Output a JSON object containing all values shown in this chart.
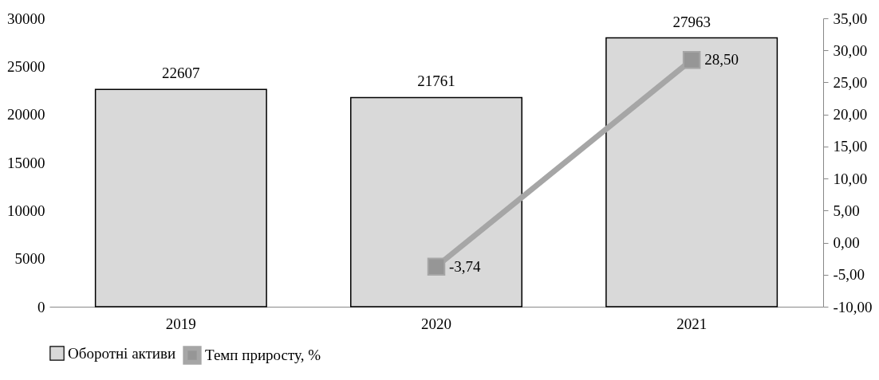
{
  "chart_data": {
    "type": "bar",
    "categories": [
      "2019",
      "2020",
      "2021"
    ],
    "series": [
      {
        "name": "Оборотні активи",
        "color": "#d9d9d9",
        "values": [
          22607,
          21761,
          27963
        ],
        "value_labels": [
          "22607",
          "21761",
          "27963"
        ]
      },
      {
        "name": "Темп приросту, %",
        "type": "line",
        "axis": "y2",
        "color": "#a6a6a6",
        "marker": "square",
        "values": [
          null,
          -3.74,
          28.5
        ],
        "value_labels": [
          null,
          "-3,74",
          "28,50"
        ]
      }
    ],
    "ylim": [
      0,
      30000
    ],
    "yticks": [
      0,
      5000,
      10000,
      15000,
      20000,
      25000,
      30000
    ],
    "y2lim": [
      -10,
      35
    ],
    "y2ticks": [
      {
        "value": -10,
        "label": "-10,00"
      },
      {
        "value": -5,
        "label": "-5,00"
      },
      {
        "value": 0,
        "label": "0,00"
      },
      {
        "value": 5,
        "label": "5,00"
      },
      {
        "value": 10,
        "label": "10,00"
      },
      {
        "value": 15,
        "label": "15,00"
      },
      {
        "value": 20,
        "label": "20,00"
      },
      {
        "value": 25,
        "label": "25,00"
      },
      {
        "value": 30,
        "label": "30,00"
      },
      {
        "value": 35,
        "label": "35,00"
      }
    ],
    "grid": false,
    "legend": "bottom"
  }
}
